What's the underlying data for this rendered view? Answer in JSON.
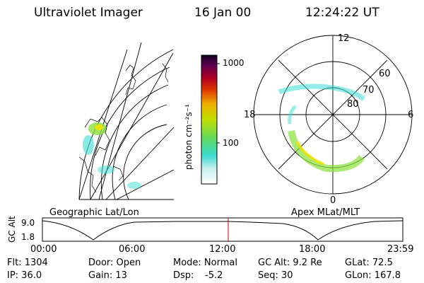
{
  "header": {
    "instrument": "Ultraviolet Imager",
    "date": "16 Jan 00",
    "time": "12:24:22 UT"
  },
  "colorbar": {
    "unit_label": "photon cm⁻²s⁻¹",
    "ticks": [
      "1000",
      "100"
    ],
    "colors": [
      "#ffffff",
      "#3adcd0",
      "#8ae03a",
      "#f0e000",
      "#f08000",
      "#c00000",
      "#400060"
    ]
  },
  "left_map": {
    "label": "Geographic Lat/Lon"
  },
  "right_map": {
    "label": "Apex MLat/MLT",
    "mlt_labels": {
      "top": "12",
      "left": "18",
      "right": "6",
      "bottom": "0"
    },
    "lat_labels": [
      "60",
      "70",
      "80"
    ]
  },
  "orbit_plot": {
    "ylabel": "GC Alt",
    "yticks": [
      "9.0",
      "1.8"
    ],
    "xticks": [
      "00:00",
      "06:00",
      "12:00",
      "18:00",
      "23:59"
    ],
    "marker_time": "12:24"
  },
  "status": {
    "flt": "Flt: 1304",
    "ip": "IP: 36.0",
    "door": "Door: Open",
    "gain": "Gain: 13",
    "mode": "Mode: Normal",
    "dsp_label": "Dsp:",
    "dsp_value": "-5.2",
    "gc_alt": "GC Alt: 9.2 Re",
    "seq": "Seq: 30",
    "glat": "GLat: 72.5",
    "glon": "GLon: 167.8"
  }
}
